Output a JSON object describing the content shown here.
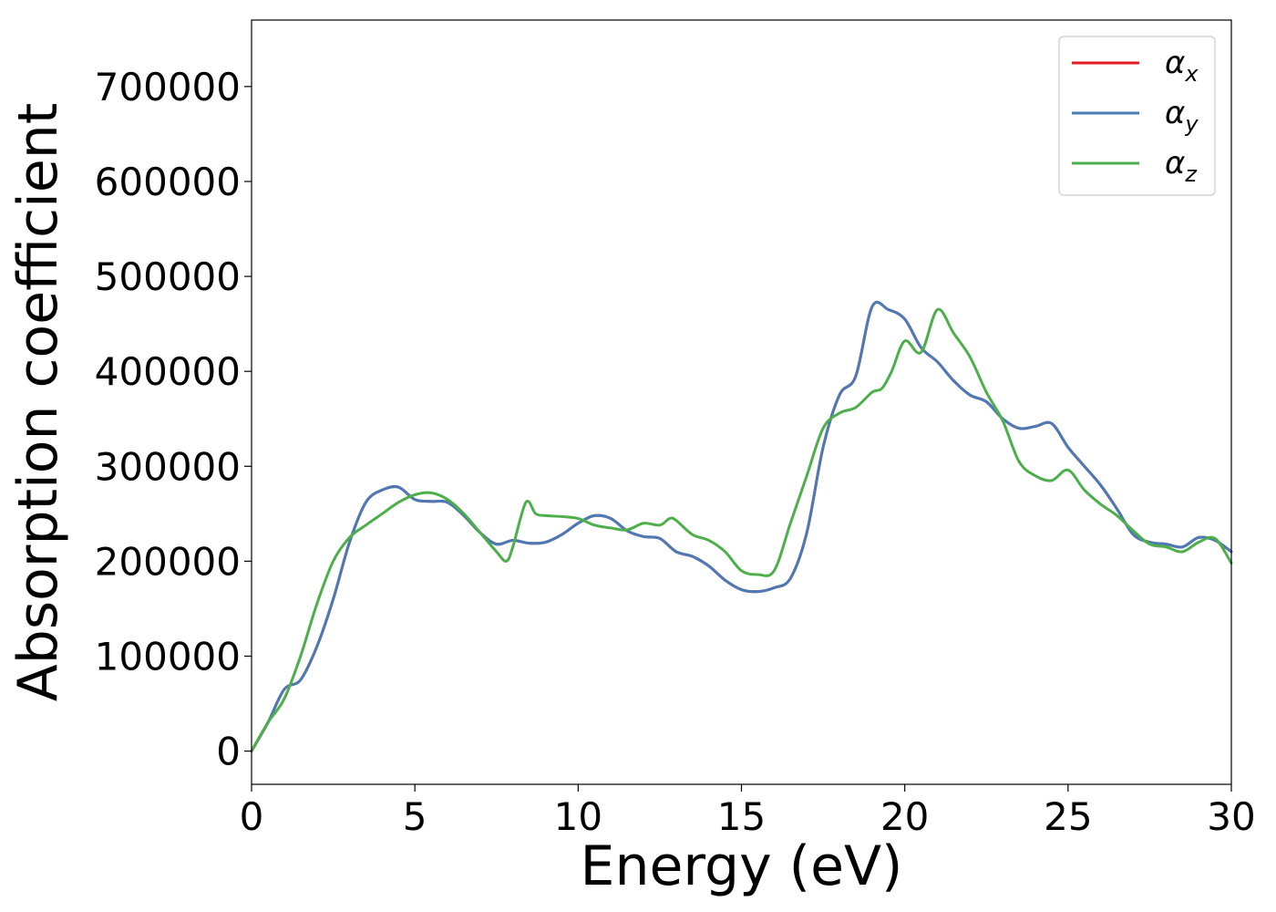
{
  "chart_data": {
    "type": "line",
    "title": "",
    "xlabel": "Energy (eV)",
    "ylabel": "Absorption coefficient",
    "xlim": [
      0,
      30
    ],
    "ylim": [
      -35000,
      770000
    ],
    "xticks": [
      0,
      5,
      10,
      15,
      20,
      25,
      30
    ],
    "xtick_labels": [
      "0",
      "5",
      "10",
      "15",
      "20",
      "25",
      "30"
    ],
    "yticks": [
      0,
      100000,
      200000,
      300000,
      400000,
      500000,
      600000,
      700000
    ],
    "ytick_labels": [
      "0",
      "100000",
      "200000",
      "300000",
      "400000",
      "500000",
      "600000",
      "700000"
    ],
    "grid": false,
    "legend_position": "top-right",
    "series": [
      {
        "name": "α_x",
        "symbol": "α",
        "subscript": "x",
        "color": "#e41a1c",
        "x": [
          0,
          0.5,
          1,
          1.5,
          2,
          2.5,
          3,
          3.5,
          4,
          4.5,
          5,
          5.5,
          6,
          6.5,
          7,
          7.5,
          8,
          8.5,
          9,
          9.5,
          10,
          10.5,
          11,
          11.5,
          12,
          12.5,
          13,
          13.5,
          14,
          14.5,
          15,
          15.5,
          16,
          16.5,
          17,
          17.5,
          18,
          18.5,
          19,
          19.5,
          20,
          20.5,
          21,
          21.5,
          22,
          22.5,
          23,
          23.5,
          24,
          24.5,
          25,
          25.5,
          26,
          26.5,
          27,
          27.5,
          28,
          28.5,
          29,
          29.5,
          30
        ],
        "y": [
          0,
          30000,
          65000,
          75000,
          110000,
          160000,
          220000,
          262000,
          275000,
          278000,
          265000,
          263000,
          262000,
          248000,
          230000,
          218000,
          222000,
          219000,
          220000,
          228000,
          240000,
          248000,
          245000,
          232000,
          226000,
          224000,
          210000,
          205000,
          195000,
          180000,
          170000,
          168000,
          172000,
          182000,
          230000,
          320000,
          375000,
          395000,
          468000,
          465000,
          455000,
          425000,
          410000,
          390000,
          375000,
          368000,
          350000,
          340000,
          342000,
          345000,
          320000,
          300000,
          280000,
          255000,
          228000,
          220000,
          218000,
          215000,
          225000,
          222000,
          210000
        ]
      },
      {
        "name": "α_y",
        "symbol": "α",
        "subscript": "y",
        "color": "#4a7bb7",
        "x": [
          0,
          0.5,
          1,
          1.5,
          2,
          2.5,
          3,
          3.5,
          4,
          4.5,
          5,
          5.5,
          6,
          6.5,
          7,
          7.5,
          8,
          8.5,
          9,
          9.5,
          10,
          10.5,
          11,
          11.5,
          12,
          12.5,
          13,
          13.5,
          14,
          14.5,
          15,
          15.5,
          16,
          16.5,
          17,
          17.5,
          18,
          18.5,
          19,
          19.5,
          20,
          20.5,
          21,
          21.5,
          22,
          22.5,
          23,
          23.5,
          24,
          24.5,
          25,
          25.5,
          26,
          26.5,
          27,
          27.5,
          28,
          28.5,
          29,
          29.5,
          30
        ],
        "y": [
          0,
          30000,
          65000,
          75000,
          110000,
          160000,
          220000,
          262000,
          275000,
          278000,
          265000,
          263000,
          262000,
          248000,
          230000,
          218000,
          222000,
          219000,
          220000,
          228000,
          240000,
          248000,
          245000,
          232000,
          226000,
          224000,
          210000,
          205000,
          195000,
          180000,
          170000,
          168000,
          172000,
          182000,
          230000,
          320000,
          375000,
          395000,
          468000,
          465000,
          455000,
          425000,
          410000,
          390000,
          375000,
          368000,
          350000,
          340000,
          342000,
          345000,
          320000,
          300000,
          280000,
          255000,
          228000,
          220000,
          218000,
          215000,
          225000,
          222000,
          210000
        ]
      },
      {
        "name": "α_z",
        "symbol": "α",
        "subscript": "z",
        "color": "#4daf4a",
        "x": [
          0,
          0.5,
          1,
          1.5,
          2,
          2.5,
          3,
          3.5,
          4,
          4.5,
          5,
          5.5,
          6,
          6.5,
          7,
          7.5,
          7.8,
          8,
          8.4,
          8.7,
          9,
          9.5,
          10,
          10.5,
          11,
          11.5,
          12,
          12.5,
          12.8,
          13,
          13.5,
          14,
          14.5,
          15,
          15.5,
          16,
          16.5,
          17,
          17.5,
          18,
          18.5,
          19,
          19.3,
          19.6,
          20,
          20.5,
          21,
          21.5,
          22,
          22.5,
          23,
          23.5,
          24,
          24.5,
          25,
          25.5,
          26,
          26.5,
          27,
          27.5,
          28,
          28.5,
          29,
          29.5,
          30
        ],
        "y": [
          0,
          30000,
          55000,
          100000,
          155000,
          200000,
          225000,
          238000,
          250000,
          262000,
          270000,
          272000,
          265000,
          250000,
          230000,
          210000,
          200000,
          215000,
          262000,
          250000,
          248000,
          247000,
          245000,
          238000,
          235000,
          233000,
          240000,
          238000,
          245000,
          243000,
          228000,
          222000,
          210000,
          190000,
          186000,
          190000,
          240000,
          290000,
          340000,
          356000,
          362000,
          378000,
          382000,
          400000,
          432000,
          420000,
          465000,
          440000,
          415000,
          378000,
          348000,
          305000,
          290000,
          285000,
          296000,
          275000,
          260000,
          248000,
          232000,
          218000,
          215000,
          210000,
          220000,
          224000,
          198000
        ]
      }
    ]
  }
}
